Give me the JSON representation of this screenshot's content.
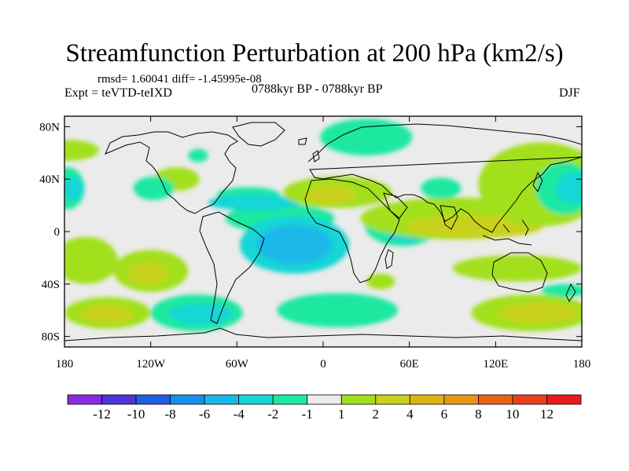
{
  "header": {
    "title": "Streamfunction Perturbation at 200 hPa (km2/s)",
    "stats": "rmsd= 1.60041 diff= -1.45995e-08",
    "experiment": "Expt = teVTD-teIXD",
    "period": "0788kyr BP - 0788kyr BP",
    "season": "DJF"
  },
  "map": {
    "lat_labels": [
      "80N",
      "40N",
      "0",
      "40S",
      "80S"
    ],
    "lat_values": [
      80,
      40,
      0,
      -40,
      -80
    ],
    "lon_labels": [
      "180",
      "120W",
      "60W",
      "0",
      "60E",
      "120E",
      "180"
    ],
    "lon_values": [
      -180,
      -120,
      -60,
      0,
      60,
      120,
      180
    ],
    "lon_range": [
      -180,
      180
    ],
    "lat_range": [
      -88,
      88
    ]
  },
  "colorbar": {
    "labels": [
      "-12",
      "-10",
      "-8",
      "-6",
      "-4",
      "-2",
      "-1",
      "1",
      "2",
      "4",
      "6",
      "8",
      "10",
      "12"
    ],
    "colors": [
      "#8a2be2",
      "#4b35d6",
      "#1f5fe0",
      "#1a8fe8",
      "#1ab8e8",
      "#18d6d6",
      "#1de8a0",
      "#ebebeb",
      "#a2e01c",
      "#c8d21a",
      "#dcb414",
      "#e89614",
      "#e86414",
      "#e8401a",
      "#e81a1a"
    ]
  },
  "field": {
    "background": "#ebebeb",
    "blobs": [
      {
        "lon": -178,
        "lat": 62,
        "rlon": 22,
        "rlat": 8,
        "level": 1
      },
      {
        "lon": 30,
        "lat": 72,
        "rlon": 32,
        "rlat": 14,
        "level": -1
      },
      {
        "lon": -87,
        "lat": 58,
        "rlon": 7,
        "rlat": 5,
        "level": -1
      },
      {
        "lon": -102,
        "lat": 40,
        "rlon": 16,
        "rlat": 9,
        "level": 1
      },
      {
        "lon": -118,
        "lat": 33,
        "rlon": 14,
        "rlat": 9,
        "level": -1
      },
      {
        "lon": -52,
        "lat": 28,
        "rlon": 22,
        "rlat": 6,
        "level": -1
      },
      {
        "lon": -30,
        "lat": 10,
        "rlon": 38,
        "rlat": 11,
        "level": -1
      },
      {
        "lon": -20,
        "lat": -10,
        "rlon": 38,
        "rlat": 22,
        "level": -2
      },
      {
        "lon": -20,
        "lat": -10,
        "rlon": 26,
        "rlat": 15,
        "level": -4
      },
      {
        "lon": -48,
        "lat": 22,
        "rlon": 32,
        "rlat": 6,
        "level": -2
      },
      {
        "lon": 10,
        "lat": 30,
        "rlon": 38,
        "rlat": 12,
        "level": 1
      },
      {
        "lon": 5,
        "lat": 28,
        "rlon": 18,
        "rlat": 7,
        "level": 2
      },
      {
        "lon": 55,
        "lat": 5,
        "rlon": 26,
        "rlat": 16,
        "level": -1
      },
      {
        "lon": 58,
        "lat": 2,
        "rlon": 16,
        "rlat": 10,
        "level": -2
      },
      {
        "lon": 92,
        "lat": 10,
        "rlon": 66,
        "rlat": 16,
        "level": 1
      },
      {
        "lon": 105,
        "lat": 4,
        "rlon": 48,
        "rlat": 9,
        "level": 2
      },
      {
        "lon": 82,
        "lat": 33,
        "rlon": 14,
        "rlat": 8,
        "level": -1
      },
      {
        "lon": 152,
        "lat": 36,
        "rlon": 44,
        "rlat": 32,
        "level": 1
      },
      {
        "lon": 168,
        "lat": 33,
        "rlon": 20,
        "rlat": 20,
        "level": -1
      },
      {
        "lon": 174,
        "lat": 33,
        "rlon": 12,
        "rlat": 12,
        "level": -2
      },
      {
        "lon": -178,
        "lat": 33,
        "rlon": 12,
        "rlat": 16,
        "level": -1
      },
      {
        "lon": -174,
        "lat": 33,
        "rlon": 7,
        "rlat": 9,
        "level": -2
      },
      {
        "lon": -165,
        "lat": -22,
        "rlon": 22,
        "rlat": 18,
        "level": 1
      },
      {
        "lon": -120,
        "lat": -30,
        "rlon": 26,
        "rlat": 16,
        "level": 1
      },
      {
        "lon": -122,
        "lat": -32,
        "rlon": 14,
        "rlat": 9,
        "level": 2
      },
      {
        "lon": 40,
        "lat": -38,
        "rlon": 10,
        "rlat": 6,
        "level": 1
      },
      {
        "lon": 135,
        "lat": -28,
        "rlon": 45,
        "rlat": 10,
        "level": 1
      },
      {
        "lon": 168,
        "lat": -45,
        "rlon": 16,
        "rlat": 5,
        "level": -1
      },
      {
        "lon": -150,
        "lat": -62,
        "rlon": 30,
        "rlat": 12,
        "level": 1
      },
      {
        "lon": -150,
        "lat": -63,
        "rlon": 18,
        "rlat": 7,
        "level": 2
      },
      {
        "lon": -88,
        "lat": -62,
        "rlon": 32,
        "rlat": 14,
        "level": -1
      },
      {
        "lon": -85,
        "lat": -63,
        "rlon": 22,
        "rlat": 8,
        "level": -2
      },
      {
        "lon": 10,
        "lat": -60,
        "rlon": 42,
        "rlat": 13,
        "level": -1
      },
      {
        "lon": 145,
        "lat": -62,
        "rlon": 42,
        "rlat": 14,
        "level": 1
      },
      {
        "lon": 150,
        "lat": -62,
        "rlon": 28,
        "rlat": 8,
        "level": 2
      }
    ]
  }
}
